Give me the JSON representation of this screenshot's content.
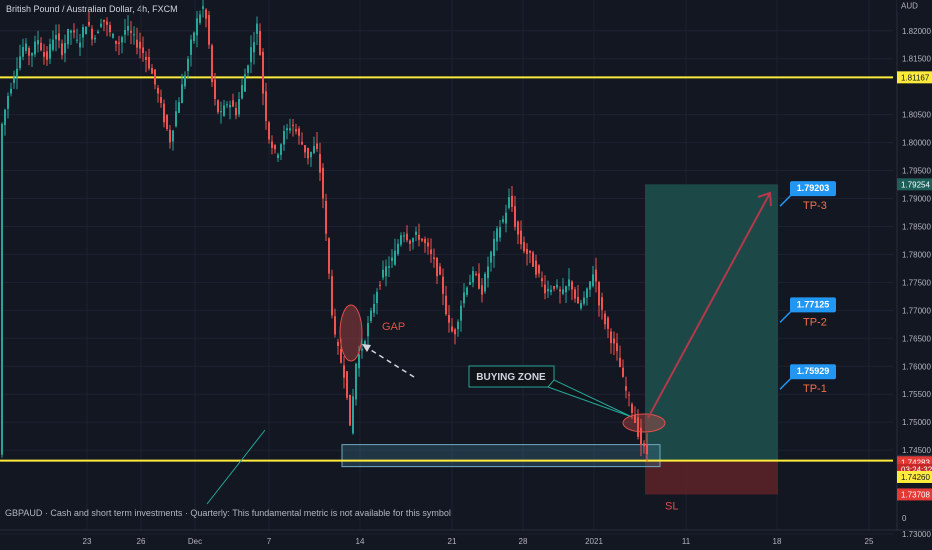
{
  "header": {
    "title": "British Pound / Australian Dollar, 4h, FXCM"
  },
  "footer": {
    "note": "GBPAUD · Cash and short term investments · Quarterly: This fundamental metric is not available for this symbol"
  },
  "colors": {
    "background": "#131722",
    "up": "#26a69a",
    "down": "#ef5350",
    "yellow_line": "#ffeb3b",
    "target_zone": "#1e4e4b",
    "stop_zone": "#5a2228",
    "buying_zone": "#3b6f86",
    "label_blue": "#2196f3",
    "annotation_red": "#e0504a",
    "arrow": "#b2394a"
  },
  "chart_data": {
    "type": "candlestick",
    "symbol": "GBPAUD",
    "interval": "4h",
    "y_unit": "AUD",
    "ylim": [
      1.7275,
      1.8255
    ],
    "y_ticks": [
      1.82,
      1.815,
      1.805,
      1.8,
      1.795,
      1.79,
      1.785,
      1.78,
      1.775,
      1.77,
      1.765,
      1.76,
      1.755,
      1.75,
      1.745,
      1.73
    ],
    "y_tick_labels": [
      "1.82000",
      "1.81500",
      "1.80500",
      "1.80000",
      "1.79500",
      "1.79000",
      "1.78500",
      "1.78000",
      "1.77500",
      "1.77000",
      "1.76500",
      "1.76000",
      "1.75500",
      "1.75000",
      "1.74500",
      "1.73000"
    ],
    "y_extra_label": "0",
    "x_ticks": [
      "23",
      "26",
      "Dec",
      "7",
      "14",
      "21",
      "28",
      "2021",
      "11",
      "18",
      "25"
    ],
    "path": [
      [
        0,
        1.8015
      ],
      [
        8,
        1.8085
      ],
      [
        16,
        1.8135
      ],
      [
        24,
        1.8175
      ],
      [
        30,
        1.8155
      ],
      [
        38,
        1.8185
      ],
      [
        46,
        1.8145
      ],
      [
        54,
        1.8195
      ],
      [
        62,
        1.8165
      ],
      [
        70,
        1.8205
      ],
      [
        78,
        1.8175
      ],
      [
        86,
        1.8215
      ],
      [
        94,
        1.8185
      ],
      [
        102,
        1.8225
      ],
      [
        110,
        1.8195
      ],
      [
        118,
        1.8175
      ],
      [
        126,
        1.8205
      ],
      [
        134,
        1.8185
      ],
      [
        142,
        1.8165
      ],
      [
        150,
        1.8135
      ],
      [
        158,
        1.8085
      ],
      [
        165,
        1.8035
      ],
      [
        170,
        1.8005
      ],
      [
        176,
        1.8055
      ],
      [
        184,
        1.8115
      ],
      [
        192,
        1.8185
      ],
      [
        198,
        1.8225
      ],
      [
        204,
        1.8245
      ],
      [
        208,
        1.8195
      ],
      [
        213,
        1.8085
      ],
      [
        220,
        1.8045
      ],
      [
        228,
        1.8075
      ],
      [
        236,
        1.8055
      ],
      [
        244,
        1.8115
      ],
      [
        252,
        1.8175
      ],
      [
        258,
        1.8215
      ],
      [
        262,
        1.8105
      ],
      [
        268,
        1.8015
      ],
      [
        276,
        1.7975
      ],
      [
        284,
        1.8015
      ],
      [
        292,
        1.8035
      ],
      [
        300,
        1.8005
      ],
      [
        308,
        1.7975
      ],
      [
        316,
        1.7995
      ],
      [
        322,
        1.7925
      ],
      [
        328,
        1.7785
      ],
      [
        334,
        1.7655
      ],
      [
        340,
        1.7615
      ],
      [
        346,
        1.7575
      ],
      [
        350,
        1.7485
      ],
      [
        356,
        1.7605
      ],
      [
        362,
        1.7635
      ],
      [
        370,
        1.7685
      ],
      [
        378,
        1.7745
      ],
      [
        386,
        1.7775
      ],
      [
        394,
        1.7795
      ],
      [
        402,
        1.7845
      ],
      [
        410,
        1.7825
      ],
      [
        418,
        1.7835
      ],
      [
        426,
        1.7815
      ],
      [
        434,
        1.7785
      ],
      [
        442,
        1.7745
      ],
      [
        448,
        1.7675
      ],
      [
        454,
        1.7655
      ],
      [
        460,
        1.7705
      ],
      [
        466,
        1.7745
      ],
      [
        474,
        1.7765
      ],
      [
        482,
        1.7735
      ],
      [
        490,
        1.7795
      ],
      [
        498,
        1.7845
      ],
      [
        504,
        1.7865
      ],
      [
        510,
        1.7905
      ],
      [
        516,
        1.7845
      ],
      [
        522,
        1.7815
      ],
      [
        530,
        1.7795
      ],
      [
        538,
        1.7765
      ],
      [
        546,
        1.7735
      ],
      [
        554,
        1.7745
      ],
      [
        562,
        1.7725
      ],
      [
        570,
        1.7755
      ],
      [
        578,
        1.7705
      ],
      [
        586,
        1.7725
      ],
      [
        594,
        1.7775
      ],
      [
        600,
        1.7705
      ],
      [
        606,
        1.7675
      ],
      [
        612,
        1.7645
      ],
      [
        618,
        1.7615
      ],
      [
        624,
        1.7565
      ],
      [
        630,
        1.7535
      ],
      [
        636,
        1.7495
      ],
      [
        642,
        1.7455
      ],
      [
        648,
        1.7442
      ]
    ],
    "reference_lines": [
      1.81167,
      1.74312
    ],
    "price_tags": [
      {
        "label": "AUD",
        "price": 1.8245,
        "style": "unit"
      },
      {
        "label": "1.81167",
        "price": 1.81167,
        "style": "yellow"
      },
      {
        "label": "1.79254",
        "price": 1.79254,
        "style": "teal"
      },
      {
        "label": "1.74312",
        "price": 1.74312,
        "style": "grey"
      },
      {
        "label": "1.74283",
        "price": 1.74283,
        "style": "red"
      },
      {
        "label": "03:24:32",
        "price": 1.7415,
        "style": "dark"
      },
      {
        "label": "1.74260",
        "price": 1.7402,
        "style": "yellow"
      },
      {
        "label": "1.73708",
        "price": 1.73708,
        "style": "red"
      }
    ],
    "position": {
      "entry": 1.74312,
      "target": 1.79254,
      "stop": 1.73708,
      "take_profits": [
        {
          "name": "TP-1",
          "price": 1.75929
        },
        {
          "name": "TP-2",
          "price": 1.77125
        },
        {
          "name": "TP-3",
          "price": 1.79203
        }
      ]
    },
    "buying_zone": {
      "low": 1.7415,
      "high": 1.7442
    },
    "annotations": {
      "gap": "GAP",
      "buying_zone": "BUYING ZONE",
      "stop": "SL"
    }
  }
}
